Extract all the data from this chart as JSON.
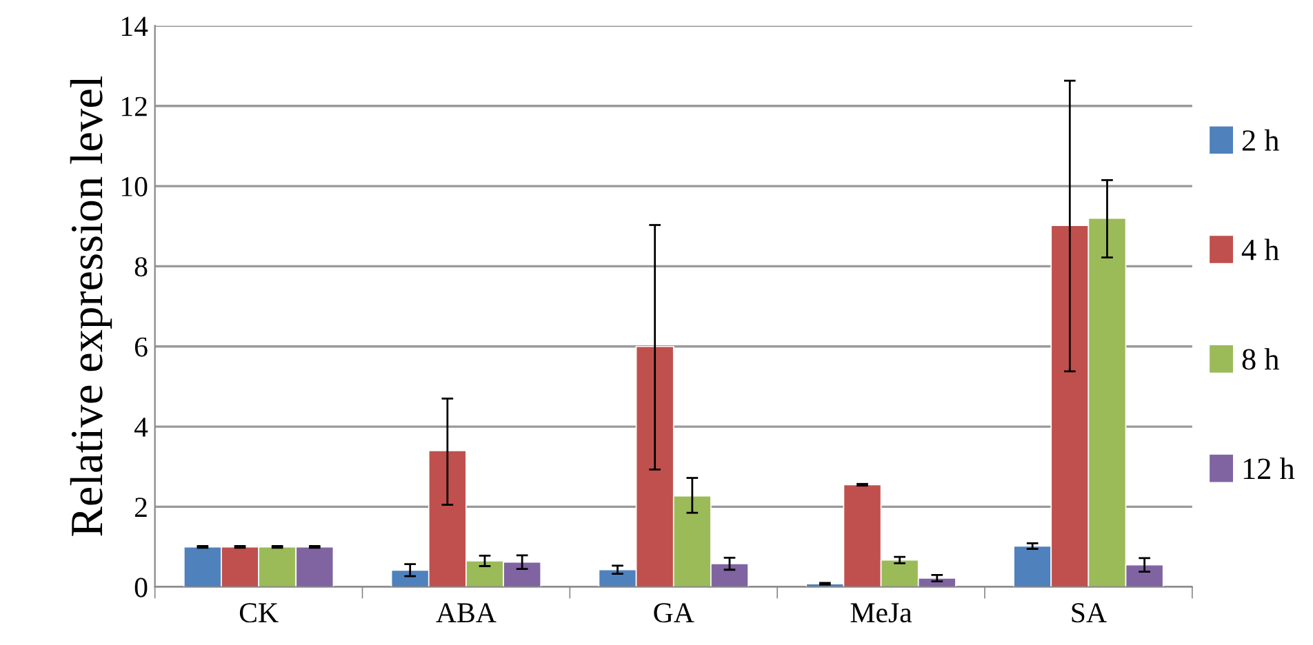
{
  "chart_data": {
    "type": "bar",
    "ylabel": "Relative expression level",
    "categories": [
      "CK",
      "ABA",
      "GA",
      "MeJa",
      "SA"
    ],
    "series": [
      {
        "name": "2 h",
        "color": "#4f81bd",
        "values": [
          1.0,
          0.42,
          0.43,
          0.08,
          1.02
        ],
        "errors": [
          0.02,
          0.15,
          0.1,
          0.02,
          0.07
        ]
      },
      {
        "name": "4 h",
        "color": "#c0504d",
        "values": [
          1.0,
          3.4,
          6.0,
          2.55,
          9.02
        ],
        "errors": [
          0.02,
          [
            2.05,
            4.7
          ],
          [
            2.93,
            9.03
          ],
          0.02,
          [
            5.38,
            12.63
          ]
        ]
      },
      {
        "name": "8 h",
        "color": "#9bbb59",
        "values": [
          1.0,
          0.65,
          2.27,
          0.67,
          9.2
        ],
        "errors": [
          0.02,
          0.13,
          [
            1.85,
            2.72
          ],
          0.08,
          [
            8.22,
            10.15
          ]
        ]
      },
      {
        "name": "12 h",
        "color": "#8064a2",
        "values": [
          1.0,
          0.62,
          0.58,
          0.22,
          0.55
        ],
        "errors": [
          0.02,
          0.17,
          0.15,
          0.08,
          0.17
        ]
      }
    ],
    "ylim": [
      0,
      14
    ],
    "yticks": [
      0,
      2,
      4,
      6,
      8,
      10,
      12,
      14
    ],
    "grid": "y",
    "legend": "right"
  }
}
